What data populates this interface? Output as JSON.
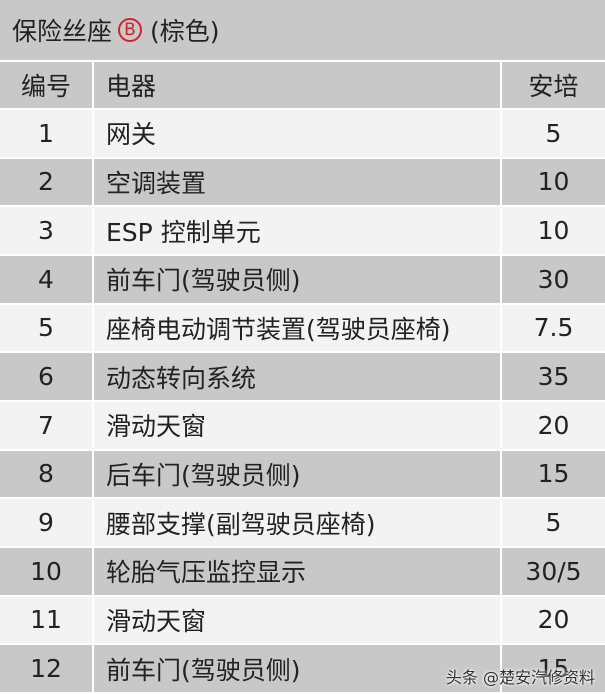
{
  "title": {
    "text": "保险丝座",
    "badge": "B",
    "suffix": "(棕色)"
  },
  "table": {
    "header": [
      "编号",
      "电器",
      "安培"
    ],
    "rows": [
      [
        "1",
        "网关",
        "5"
      ],
      [
        "2",
        "空调装置",
        "10"
      ],
      [
        "3",
        "ESP 控制单元",
        "10"
      ],
      [
        "4",
        "前车门(驾驶员侧)",
        "30"
      ],
      [
        "5",
        "座椅电动调节装置(驾驶员座椅)",
        "7.5"
      ],
      [
        "6",
        "动态转向系统",
        "35"
      ],
      [
        "7",
        "滑动天窗",
        "20"
      ],
      [
        "8",
        "后车门(驾驶员侧)",
        "15"
      ],
      [
        "9",
        "腰部支撑(副驾驶员座椅)",
        "5"
      ],
      [
        "10",
        "轮胎气压监控显示",
        "30/5"
      ],
      [
        "11",
        "滑动天窗",
        "20"
      ],
      [
        "12",
        "前车门(驾驶员侧)",
        "15"
      ]
    ]
  },
  "watermark": {
    "text": "头条 @楚安汽修资料"
  }
}
